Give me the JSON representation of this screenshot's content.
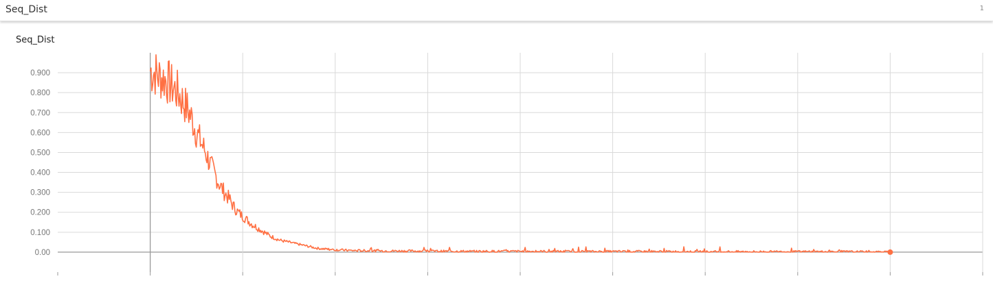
{
  "header": {
    "title": "Seq_Dist",
    "count": "1"
  },
  "card": {
    "title": "Seq_Dist"
  },
  "colors": {
    "line": "#ff7043",
    "grid": "#d9d9d9",
    "axis": "#999999"
  },
  "chart_data": {
    "type": "line",
    "title": "Seq_Dist",
    "xlabel": "",
    "ylabel": "",
    "grid": true,
    "ylim": [
      -0.1,
      1.0
    ],
    "xlim": [
      -1,
      9
    ],
    "y_tick_labels": [
      "0.00",
      "0.100",
      "0.200",
      "0.300",
      "0.400",
      "0.500",
      "0.600",
      "0.700",
      "0.800",
      "0.900"
    ],
    "y_ticks": [
      0,
      0.1,
      0.2,
      0.3,
      0.4,
      0.5,
      0.6,
      0.7,
      0.8,
      0.9
    ],
    "x_ticks": [
      -1,
      0,
      1,
      2,
      3,
      4,
      5,
      6,
      7,
      8,
      9
    ],
    "series": [
      {
        "x": [
          0,
          0.05,
          0.1,
          0.15,
          0.2,
          0.3,
          0.35,
          0.4,
          0.45,
          0.5,
          0.55,
          0.6,
          0.65,
          0.7,
          0.75,
          0.8,
          0.85,
          0.9,
          0.95,
          1.0,
          1.1,
          1.2,
          1.3,
          1.4,
          1.5,
          1.6,
          1.7,
          1.8,
          1.9,
          2.0,
          2.1,
          2.2,
          2.4,
          2.6,
          2.8,
          3.0,
          3.5,
          4.0,
          4.5,
          5.0,
          5.5,
          6.0,
          6.5,
          7.0,
          7.5,
          8.0
        ],
        "y": [
          0.91,
          0.9,
          0.88,
          0.87,
          0.85,
          0.8,
          0.76,
          0.72,
          0.67,
          0.6,
          0.55,
          0.5,
          0.44,
          0.39,
          0.34,
          0.3,
          0.27,
          0.23,
          0.2,
          0.18,
          0.14,
          0.11,
          0.08,
          0.06,
          0.05,
          0.04,
          0.03,
          0.02,
          0.015,
          0.012,
          0.01,
          0.008,
          0.007,
          0.006,
          0.006,
          0.005,
          0.004,
          0.004,
          0.003,
          0.003,
          0.003,
          0.002,
          0.002,
          0.002,
          0.002,
          0.0
        ]
      }
    ]
  }
}
